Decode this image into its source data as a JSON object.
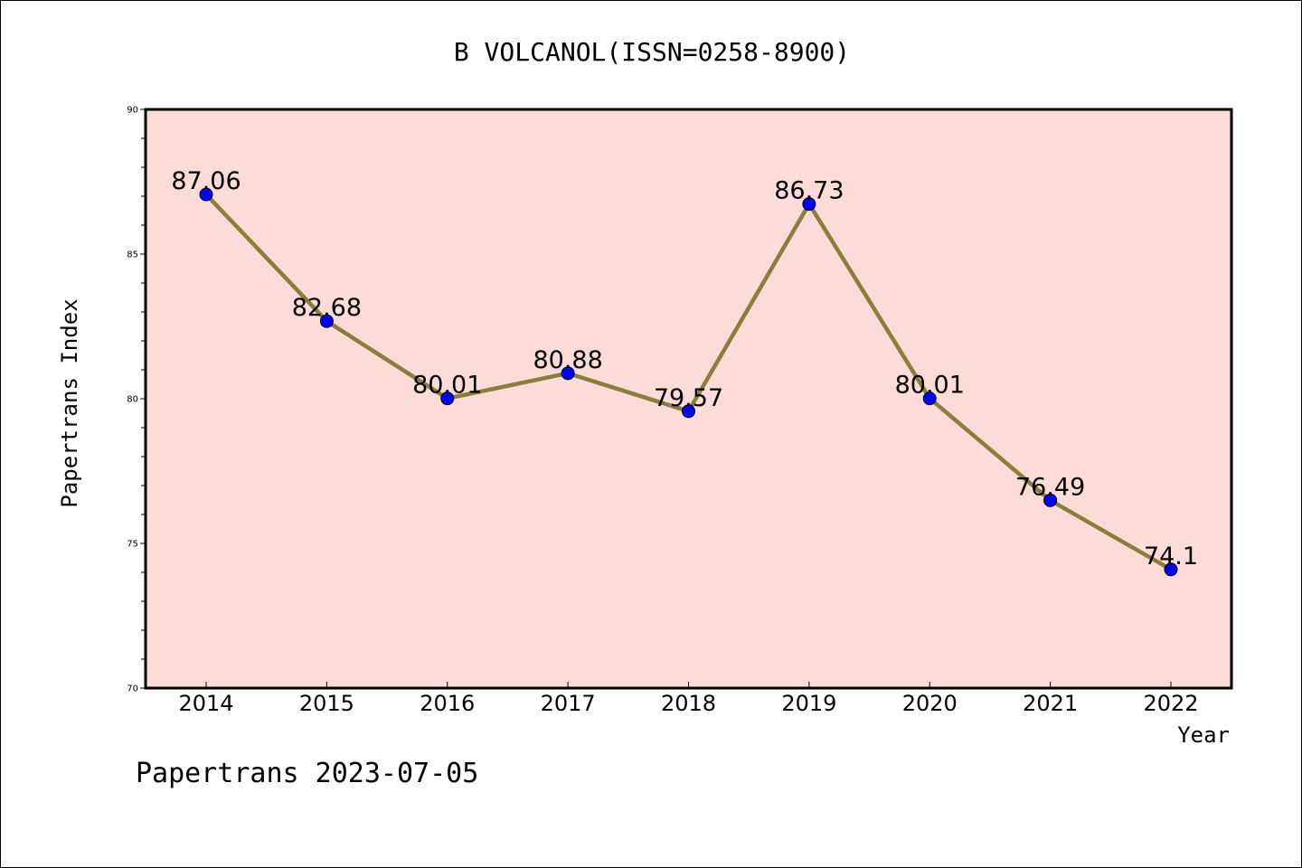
{
  "chart_data": {
    "type": "line",
    "title": "B VOLCANOL(ISSN=0258-8900)",
    "xlabel": "Year",
    "ylabel": "Papertrans Index",
    "ylim": [
      70,
      90
    ],
    "yticks": [
      70,
      75,
      80,
      85,
      90
    ],
    "categories": [
      "2014",
      "2015",
      "2016",
      "2017",
      "2018",
      "2019",
      "2020",
      "2021",
      "2022"
    ],
    "series": [
      {
        "values": [
          87.06,
          82.68,
          80.01,
          80.88,
          79.57,
          86.73,
          80.01,
          76.49,
          74.1
        ],
        "labels": [
          "87.06",
          "82.68",
          "80.01",
          "80.88",
          "79.57",
          "86.73",
          "80.01",
          "76.49",
          "74.1"
        ]
      }
    ],
    "grid": false,
    "colors": {
      "plot_background": "#fddbd8",
      "line": "#8b7d3a",
      "marker": "#0000ff"
    }
  },
  "footer": {
    "text": "Papertrans 2023-07-05"
  }
}
